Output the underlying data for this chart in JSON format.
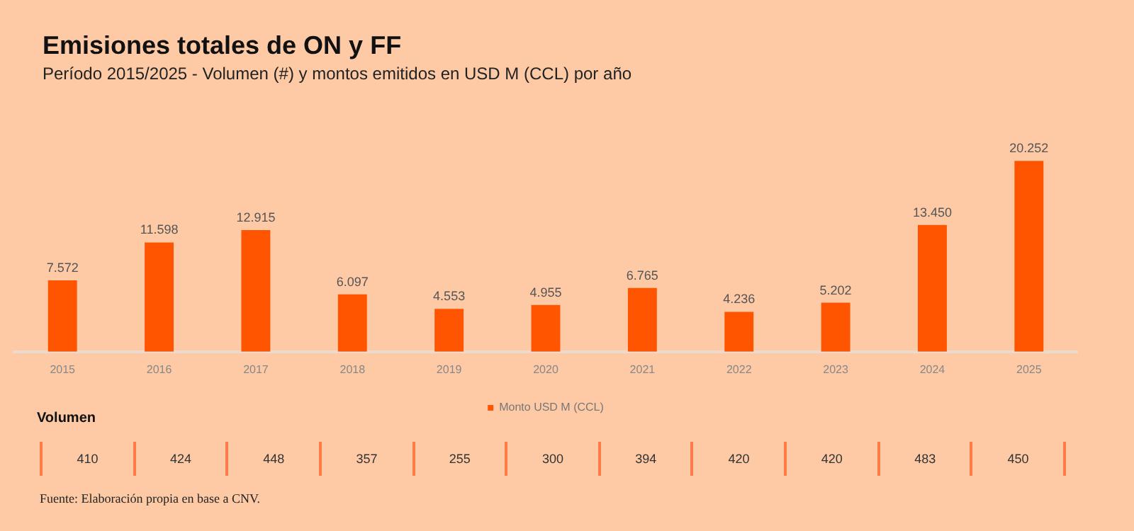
{
  "chart_data": [
    {
      "type": "bar",
      "title": "Emisiones totales de ON y FF",
      "subtitle": "Período 2015/2025 - Volumen (#) y montos emitidos en USD M (CCL) por año",
      "categories": [
        "2015",
        "2016",
        "2017",
        "2018",
        "2019",
        "2020",
        "2021",
        "2022",
        "2023",
        "2024",
        "2025"
      ],
      "series": [
        {
          "name": "Monto USD M (CCL)",
          "color": "#ff5500",
          "values": [
            7572,
            11598,
            12915,
            6097,
            4553,
            4955,
            6765,
            4236,
            5202,
            13450,
            20252
          ],
          "value_labels": [
            "7.572",
            "11.598",
            "12.915",
            "6.097",
            "4.553",
            "4.955",
            "6.765",
            "4.236",
            "5.202",
            "13.450",
            "20.252"
          ]
        }
      ],
      "legend": "bottom",
      "grid": false,
      "tick_labels": "x"
    },
    {
      "type": "other",
      "title": "Volumen",
      "values": [
        410,
        424,
        448,
        357,
        255,
        300,
        394,
        420,
        420,
        483,
        450
      ],
      "data_labels": true,
      "annotations": [
        "Fuente: Elaboración propia en base a CNV."
      ]
    }
  ]
}
